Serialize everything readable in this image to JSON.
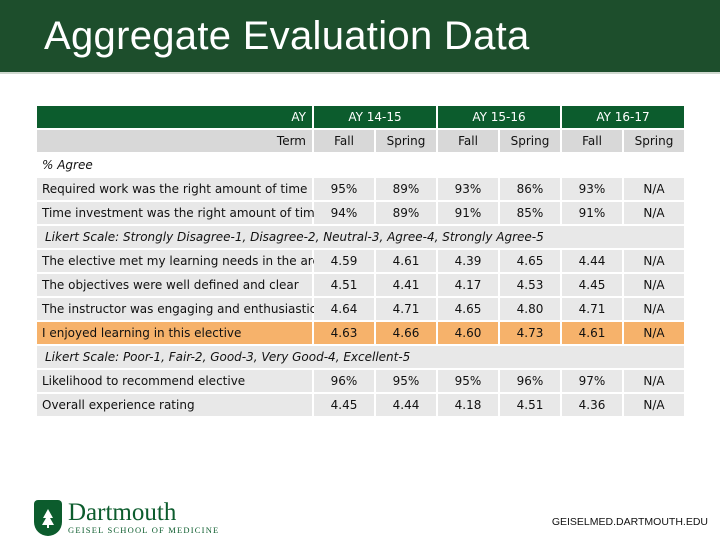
{
  "title": "Aggregate Evaluation Data",
  "header": {
    "ay_label": "AY",
    "years": [
      "AY 14-15",
      "AY 15-16",
      "AY 16-17"
    ],
    "term_label": "Term",
    "terms": [
      "Fall",
      "Spring",
      "Fall",
      "Spring",
      "Fall",
      "Spring"
    ]
  },
  "sections": {
    "agree": "% Agree",
    "likert_agree": "Likert Scale: Strongly Disagree-1, Disagree-2, Neutral-3, Agree-4, Strongly Agree-5",
    "likert_quality": "Likert Scale: Poor-1, Fair-2, Good-3, Very Good-4, Excellent-5"
  },
  "rows_agree": [
    {
      "label": "Required work was the right amount of time",
      "values": [
        "95%",
        "89%",
        "93%",
        "86%",
        "93%",
        "N/A"
      ]
    },
    {
      "label": "Time investment was the right amount of time",
      "values": [
        "94%",
        "89%",
        "91%",
        "85%",
        "91%",
        "N/A"
      ]
    }
  ],
  "rows_likert": [
    {
      "label": "The elective met my learning needs in the area",
      "values": [
        "4.59",
        "4.61",
        "4.39",
        "4.65",
        "4.44",
        "N/A"
      ]
    },
    {
      "label": "The objectives were well defined and clear",
      "values": [
        "4.51",
        "4.41",
        "4.17",
        "4.53",
        "4.45",
        "N/A"
      ]
    },
    {
      "label": "The instructor was engaging and enthusiastic",
      "values": [
        "4.64",
        "4.71",
        "4.65",
        "4.80",
        "4.71",
        "N/A"
      ]
    },
    {
      "label": "I enjoyed learning in this elective",
      "values": [
        "4.63",
        "4.66",
        "4.60",
        "4.73",
        "4.61",
        "N/A"
      ]
    }
  ],
  "rows_quality": [
    {
      "label": "Likelihood to recommend elective",
      "values": [
        "96%",
        "95%",
        "95%",
        "96%",
        "97%",
        "N/A"
      ]
    },
    {
      "label": "Overall experience rating",
      "values": [
        "4.45",
        "4.44",
        "4.18",
        "4.51",
        "4.36",
        "N/A"
      ]
    }
  ],
  "footer": {
    "brand_name": "Dartmouth",
    "brand_sub": "GEISEL SCHOOL OF MEDICINE",
    "url": "GEISELMED.DARTMOUTH.EDU"
  },
  "colors": {
    "title_bar": "#1d4e2c",
    "header": "#0c5c2d",
    "highlight": "#f6b26b",
    "row": "#e8e8e8"
  }
}
